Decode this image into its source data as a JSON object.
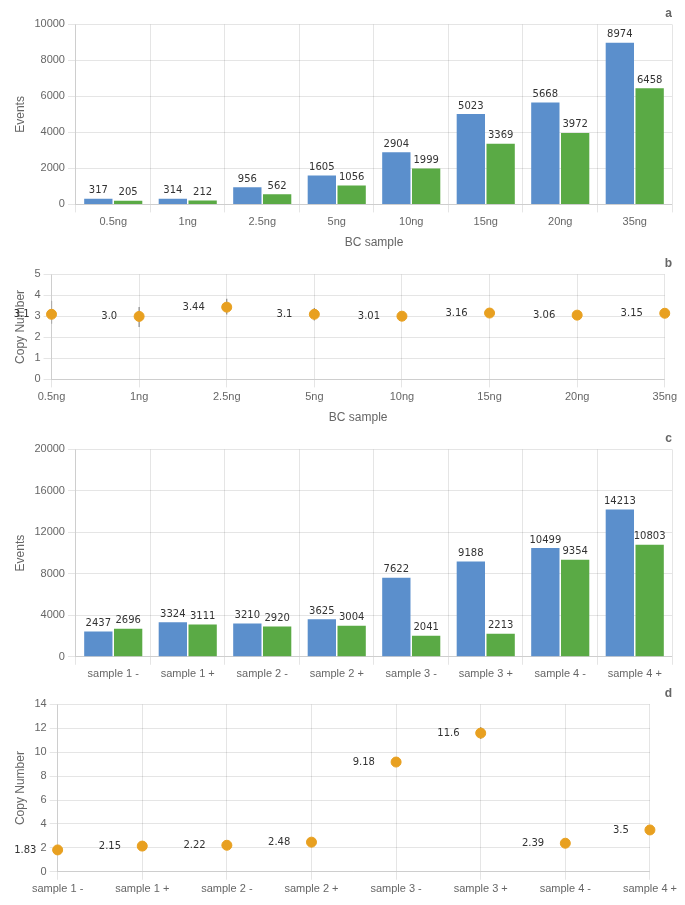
{
  "chart_data": [
    {
      "type": "bar",
      "categories": [
        "0.5ng",
        "1ng",
        "2.5ng",
        "5ng",
        "10ng",
        "15ng",
        "20ng",
        "35ng"
      ],
      "series": [
        {
          "color": "#5b8fcc",
          "values": [
            317,
            314,
            956,
            1605,
            2904,
            5023,
            5668,
            8974
          ]
        },
        {
          "color": "#5aaa45",
          "values": [
            205,
            212,
            562,
            1056,
            1999,
            3369,
            3972,
            6458
          ]
        }
      ],
      "xlabel": "BC sample",
      "ylabel": "Events",
      "ylim": [
        0,
        10000
      ],
      "yticks": [
        0,
        2000,
        4000,
        6000,
        8000,
        10000
      ],
      "grid": true,
      "data_labels": true,
      "annotation": "a"
    },
    {
      "type": "scatter",
      "marker": "circle",
      "color": "#e8a020",
      "categories": [
        "0.5ng",
        "1ng",
        "2.5ng",
        "5ng",
        "10ng",
        "15ng",
        "20ng",
        "35ng"
      ],
      "values": [
        3.1,
        3.0,
        3.44,
        3.1,
        3.01,
        3.16,
        3.06,
        3.15
      ],
      "value_labels": [
        "3.1",
        "3.0",
        "3.44",
        "3.1",
        "3.01",
        "3.16",
        "3.06",
        "3.15"
      ],
      "yerr_low": [
        0.45,
        0.5,
        0.35,
        0.3,
        0.18,
        0.18,
        0.1,
        0.17
      ],
      "yerr_high": [
        0.65,
        0.45,
        0.4,
        0.3,
        0.18,
        0.18,
        0.1,
        0.17
      ],
      "xlabel": "BC sample",
      "ylabel": "Copy Number",
      "ylim": [
        0,
        5
      ],
      "yticks": [
        0,
        1,
        2,
        3,
        4,
        5
      ],
      "grid": true,
      "data_labels": true,
      "annotation": "b"
    },
    {
      "type": "bar",
      "categories": [
        "sample 1 -",
        "sample 1 +",
        "sample 2 -",
        "sample 2 +",
        "sample 3 -",
        "sample 3 +",
        "sample 4 -",
        "sample 4 +"
      ],
      "series": [
        {
          "color": "#5b8fcc",
          "values": [
            2437,
            3324,
            3210,
            3625,
            7622,
            9188,
            10499,
            14213
          ]
        },
        {
          "color": "#5aaa45",
          "values": [
            2696,
            3111,
            2920,
            3004,
            2041,
            2213,
            9354,
            10803
          ]
        }
      ],
      "ylabel": "Events",
      "ylim": [
        0,
        20000
      ],
      "yticks": [
        0,
        4000,
        8000,
        12000,
        16000,
        20000
      ],
      "grid": true,
      "data_labels": true,
      "annotation": "c"
    },
    {
      "type": "scatter",
      "marker": "circle",
      "color": "#e8a020",
      "categories": [
        "sample 1 -",
        "sample 1 +",
        "sample 2 -",
        "sample 2 +",
        "sample 3 -",
        "sample 3 +",
        "sample 4 -",
        "sample 4 +"
      ],
      "values": [
        1.83,
        2.15,
        2.22,
        2.48,
        9.18,
        11.6,
        2.39,
        3.5
      ],
      "yerr_low": [
        0.12,
        0.12,
        0.12,
        0.25,
        0.35,
        0.5,
        0.15,
        0.2
      ],
      "yerr_high": [
        0.12,
        0.12,
        0.12,
        0.25,
        0.35,
        0.5,
        0.15,
        0.2
      ],
      "ylabel": "Copy Number",
      "ylim": [
        0,
        14
      ],
      "yticks": [
        0,
        2,
        4,
        6,
        8,
        10,
        12,
        14
      ],
      "grid": true,
      "data_labels": true,
      "annotation": "d"
    }
  ]
}
